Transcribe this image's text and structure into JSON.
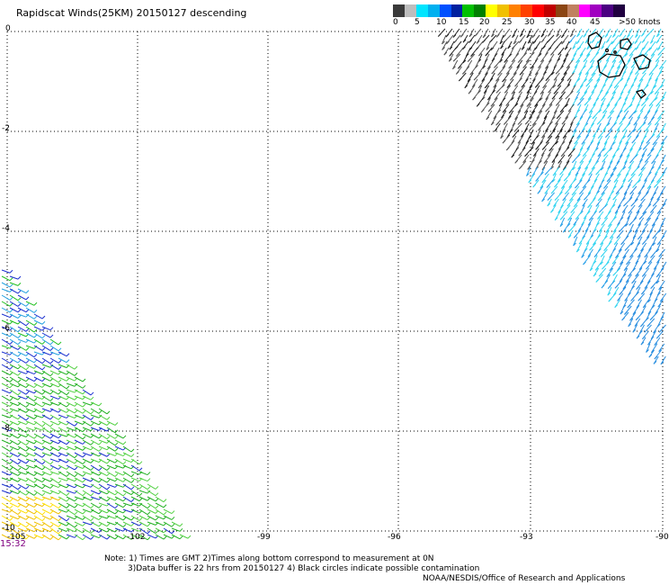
{
  "title": "Rapidscat Winds(25KM) 20150127 descending",
  "colorbar": {
    "colors": [
      "#3a3a3a",
      "#bdbdbd",
      "#00e5ff",
      "#00b0f0",
      "#0050ff",
      "#0020a0",
      "#00c000",
      "#008000",
      "#ffff00",
      "#f0c000",
      "#ff8000",
      "#ff4000",
      "#ff0000",
      "#c00000",
      "#8b4513",
      "#c08060",
      "#ff00ff",
      "#a000c0",
      "#4b0082",
      "#200040"
    ],
    "tick_labels": [
      "0",
      "5",
      "10",
      "15",
      "20",
      "25",
      "30",
      "35",
      "40",
      "45",
      ">50 knots"
    ]
  },
  "y_labels": [
    "0",
    "-2",
    "-4",
    "-6",
    "-8",
    "-10"
  ],
  "x_labels": [
    "-105",
    "-102",
    "-99",
    "-96",
    "-93",
    "-90"
  ],
  "time_label": "15:32",
  "notes": [
    "Note: 1) Times are GMT 2)Times along bottom correspond to measurement at 0N",
    "3)Data buffer is 22 hrs from 20150127 4) Black circles indicate possible contamination"
  ],
  "credit": "NOAA/NESDIS/Office of Research and Applications"
}
